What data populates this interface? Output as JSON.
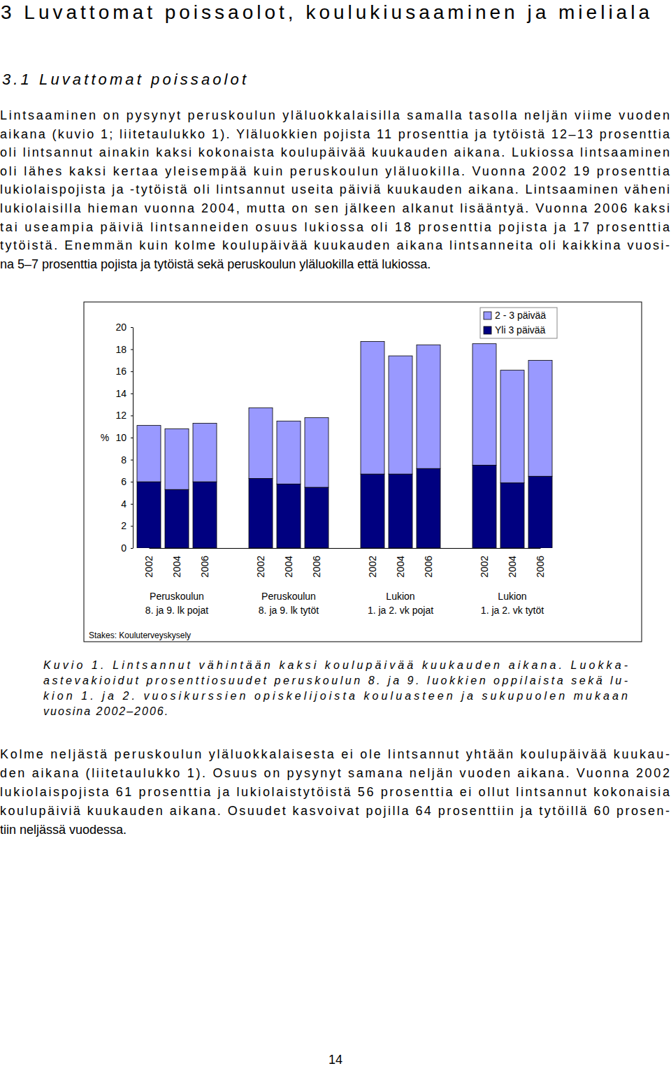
{
  "heading": "3 Luvattomat poissaolot, koulukiusaaminen ja mieliala",
  "subheading": "3.1 Luvattomat poissaolot",
  "paragraph_1": [
    "Lintsaaminen on pysynyt peruskoulun yläluokkalaisilla samalla tasolla neljän viime vuoden",
    "aikana (kuvio 1; liitetaulukko 1). Yläluokkien pojista 11 prosenttia ja tytöistä 12–13 prosenttia",
    "oli lintsannut ainakin kaksi kokonaista koulupäivää kuukauden aikana. Lukiossa lintsaaminen",
    "oli lähes kaksi kertaa yleisempää kuin peruskoulun yläluokilla. Vuonna 2002 19 prosenttia",
    "lukiolaispojista ja -tytöistä oli lintsannut useita päiviä kuukauden aikana. Lintsaaminen väheni",
    "lukiolaisilla hieman vuonna 2004, mutta on sen jälkeen alkanut lisääntyä. Vuonna 2006 kaksi",
    "tai useampia päiviä lintsanneiden osuus lukiossa oli 18 prosenttia pojista ja 17 prosenttia",
    "tytöistä. Enemmän kuin kolme koulupäivää kuukauden aikana lintsanneita oli kaikkina vuosi-",
    "na 5–7 prosenttia pojista ja tytöistä sekä peruskoulun yläluokilla että lukiossa."
  ],
  "chart_data": {
    "type": "bar",
    "stacked": true,
    "categories": [
      "2002",
      "2004",
      "2006",
      "2002",
      "2004",
      "2006",
      "2002",
      "2004",
      "2006",
      "2002",
      "2004",
      "2006"
    ],
    "group_labels": [
      [
        "Peruskoulun",
        "8. ja 9. lk pojat"
      ],
      [
        "Peruskoulun",
        "8. ja 9. lk tytöt"
      ],
      [
        "Lukion",
        "1. ja 2. vk pojat"
      ],
      [
        "Lukion",
        "1. ja 2. vk tytöt"
      ]
    ],
    "series": [
      {
        "name": "2 - 3 päivää",
        "color": "#9999ff",
        "values": [
          5.1,
          5.5,
          5.3,
          6.4,
          5.7,
          6.3,
          12.0,
          10.7,
          11.2,
          11.0,
          10.2,
          10.5
        ]
      },
      {
        "name": "Yli 3 päivää",
        "color": "#000080",
        "values": [
          6.0,
          5.3,
          6.0,
          6.3,
          5.8,
          5.5,
          6.7,
          6.7,
          7.2,
          7.5,
          5.9,
          6.5
        ]
      }
    ],
    "y_label": "%",
    "ylim": [
      0,
      20
    ],
    "yticks": [
      0,
      2,
      4,
      6,
      8,
      10,
      12,
      14,
      16,
      18,
      20
    ],
    "legend": "top-right",
    "source": "Stakes: Kouluterveyskysely"
  },
  "caption": [
    "Kuvio 1. Lintsannut vähintään kaksi koulupäivää kuukauden aikana. Luokka-",
    "astevakioidut prosenttiosuudet peruskoulun 8. ja 9. luokkien oppilaista sekä lu-",
    "kion 1. ja 2. vuosikurssien opiskelijoista kouluasteen ja sukupuolen mukaan",
    "vuosina 2002–2006."
  ],
  "paragraph_2": [
    "Kolme neljästä peruskoulun yläluokkalaisesta ei ole lintsannut yhtään koulupäivää kuukau-",
    "den aikana (liitetaulukko 1). Osuus on pysynyt samana neljän vuoden aikana. Vuonna 2002",
    "lukiolaispojista 61 prosenttia ja lukiolaistytöistä 56 prosenttia ei ollut lintsannut kokonaisia",
    "koulupäiviä kuukauden aikana. Osuudet kasvoivat pojilla 64 prosenttiin ja tytöillä 60 prosen-",
    "tiin neljässä vuodessa."
  ],
  "page_number": "14"
}
